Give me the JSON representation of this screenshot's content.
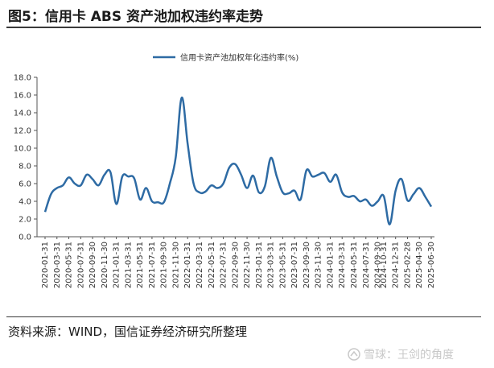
{
  "figure": {
    "title": "图5：信用卡 ABS 资产池加权违约率走势",
    "source": "资料来源：WIND，国信证券经济研究所整理",
    "watermark": "雪球：王剑的角度"
  },
  "chart_data": {
    "type": "line",
    "title": "",
    "xlabel": "",
    "ylabel": "",
    "ylim": [
      0,
      18
    ],
    "yticks": [
      "0.0",
      "2.0",
      "4.0",
      "6.0",
      "8.0",
      "10.0",
      "12.0",
      "14.0",
      "16.0",
      "18.0"
    ],
    "grid": false,
    "legend_position": "top-center",
    "line_color": "#2e6ba4",
    "series": [
      {
        "name": "信用卡资产池加权年化违约率(%)",
        "x": [
          "2020-01-31",
          "2020-02-29",
          "2020-03-31",
          "2020-04-30",
          "2020-05-31",
          "2020-06-30",
          "2020-07-31",
          "2020-08-31",
          "2020-09-30",
          "2020-10-31",
          "2020-11-30",
          "2020-12-31",
          "2021-01-31",
          "2021-02-28",
          "2021-03-31",
          "2021-04-30",
          "2021-05-31",
          "2021-06-30",
          "2021-07-31",
          "2021-08-31",
          "2021-09-30",
          "2021-10-31",
          "2021-11-30",
          "2021-12-31",
          "2022-01-31",
          "2022-02-28",
          "2022-03-31",
          "2022-04-30",
          "2022-05-31",
          "2022-06-30",
          "2022-07-31",
          "2022-08-31",
          "2022-09-30",
          "2022-10-31",
          "2022-11-30",
          "2022-12-31",
          "2023-01-31",
          "2023-02-28",
          "2023-03-31",
          "2023-04-30",
          "2023-05-31",
          "2023-06-30",
          "2023-07-31",
          "2023-08-31",
          "2023-09-30",
          "2023-10-31",
          "2023-11-30",
          "2023-12-31",
          "2024-01-31",
          "2024-02-29",
          "2024-03-31",
          "2024-04-30",
          "2024-05-31",
          "2024-06-30",
          "2024-07-31",
          "2024-08-31",
          "2024-09-30",
          "2024-10-31",
          "2024-11-30",
          "2024-12-31",
          "2025-01-31",
          "2025-02-28",
          "2025-03-31",
          "2025-04-30",
          "2025-05-31",
          "2025-06-30"
        ],
        "values": [
          2.8,
          4.8,
          5.5,
          5.8,
          6.7,
          6.0,
          5.8,
          7.0,
          6.5,
          5.8,
          7.0,
          7.3,
          3.7,
          6.8,
          6.8,
          6.6,
          4.2,
          5.5,
          4.0,
          3.9,
          3.9,
          6.0,
          9.0,
          15.7,
          10.5,
          6.0,
          5.0,
          5.1,
          5.8,
          5.5,
          6.0,
          7.8,
          8.2,
          7.0,
          5.5,
          6.9,
          5.0,
          5.7,
          8.9,
          6.8,
          5.0,
          4.9,
          5.2,
          4.2,
          7.5,
          6.8,
          7.0,
          7.2,
          6.2,
          7.0,
          5.0,
          4.5,
          4.6,
          4.0,
          4.2,
          3.5,
          4.0,
          4.6,
          1.4,
          5.2,
          6.5,
          4.1,
          4.8,
          5.5,
          4.5,
          3.4
        ]
      }
    ],
    "xtick_labels": [
      "2020-01-31",
      "2020-03-31",
      "2020-05-31",
      "2020-07-31",
      "2020-09-30",
      "2020-11-30",
      "2021-01-31",
      "2021-03-31",
      "2021-05-31",
      "2021-07-31",
      "2021-09-30",
      "2021-11-30",
      "2022-01-31",
      "2022-03-31",
      "2022-05-31",
      "2022-07-31",
      "2022-09-30",
      "2022-11-30",
      "2023-01-31",
      "2023-03-31",
      "2023-05-31",
      "2023-07-31",
      "2023-09-30",
      "2023-11-30",
      "2024-01-31",
      "2024-03-31",
      "2024-05-31",
      "2024-07-31",
      "2024-09-30",
      "2024-10-31",
      "2024-12-31",
      "2025-02-28",
      "2025-04-30",
      "2025-06-30"
    ]
  }
}
